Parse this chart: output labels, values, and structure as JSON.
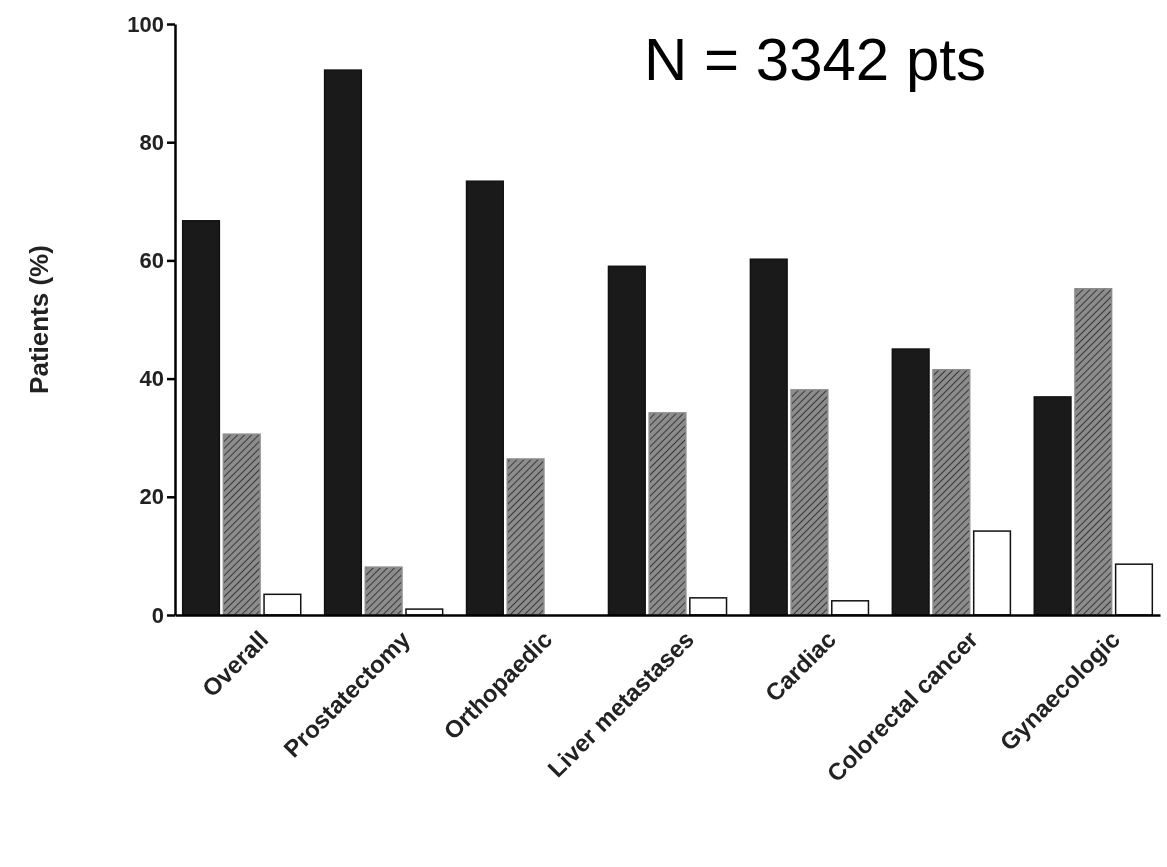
{
  "chart_data": {
    "type": "bar",
    "ylabel": "Patients (%)",
    "annotations": [
      "N = 3342 pts"
    ],
    "categories": [
      "Overall",
      "Prostatectomy",
      "Orthopaedic",
      "Liver metastases",
      "Cardiac",
      "Colorectal cancer",
      "Gynaecologic"
    ],
    "series": [
      {
        "color": "#1a1a1a",
        "values": [
          66.7,
          92.2,
          73.4,
          59.0,
          60.2,
          45.0,
          36.9
        ]
      },
      {
        "color": "#8c8c8c",
        "values": [
          30.6,
          8.1,
          26.4,
          34.2,
          38.1,
          41.5,
          55.2
        ]
      },
      {
        "color": "#ffffff",
        "values": [
          3.5,
          1.0,
          0,
          2.9,
          2.4,
          14.2,
          8.6
        ]
      }
    ],
    "ylim": [
      0,
      100
    ],
    "yticks": [
      0,
      20,
      40,
      60,
      80,
      100
    ],
    "grid": false
  }
}
